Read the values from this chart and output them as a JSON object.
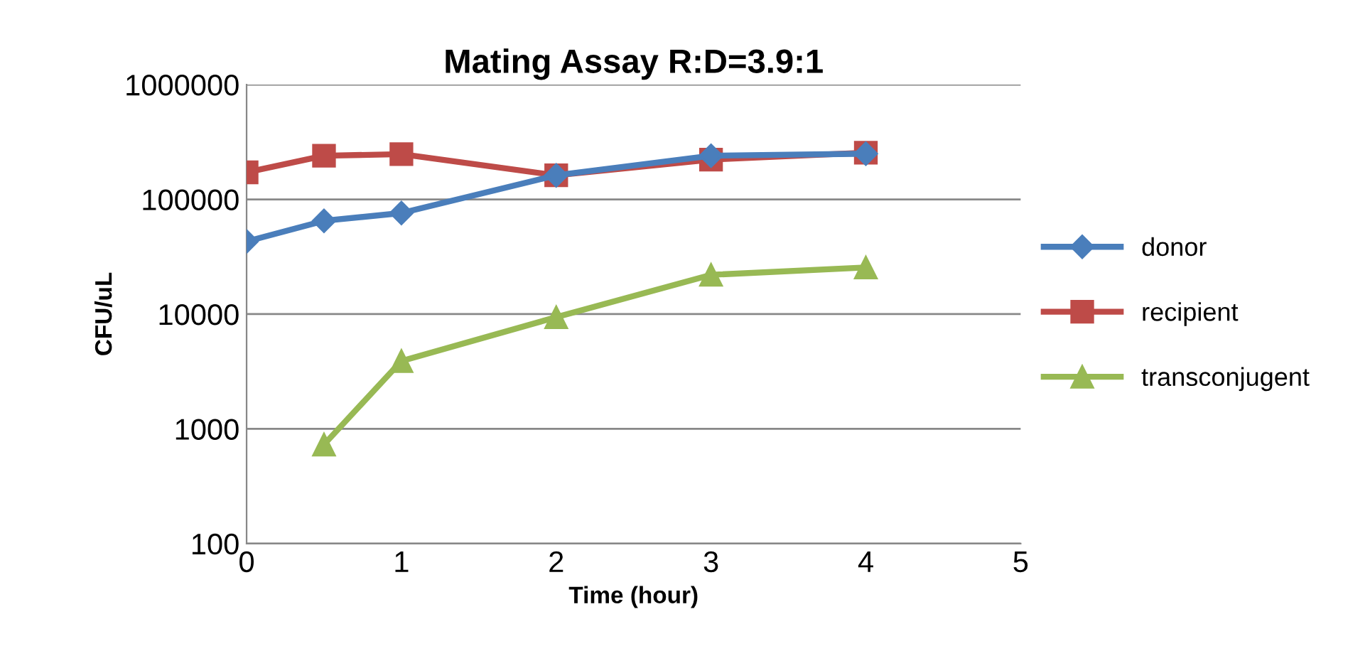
{
  "chart_data": {
    "type": "line",
    "title": "Mating Assay R:D=3.9:1",
    "xlabel": "Time (hour)",
    "ylabel": "CFU/uL",
    "x": [
      0,
      0.5,
      1,
      2,
      3,
      4
    ],
    "series": [
      {
        "name": "donor",
        "color": "#4a7ebb",
        "marker": "diamond",
        "values": [
          43000,
          65000,
          76000,
          162000,
          240000,
          250000
        ]
      },
      {
        "name": "recipient",
        "color": "#be4b48",
        "marker": "square",
        "values": [
          172000,
          240000,
          248000,
          162000,
          222000,
          255000
        ]
      },
      {
        "name": "transconjugent",
        "color": "#98b954",
        "marker": "triangle",
        "values": [
          null,
          730,
          3900,
          9400,
          22000,
          25500
        ]
      }
    ],
    "log": "y",
    "xlim": [
      0,
      5
    ],
    "xticks": [
      0,
      1,
      2,
      3,
      4,
      5
    ],
    "ylim": [
      100,
      1000000
    ],
    "yticks": [
      100,
      1000,
      10000,
      100000,
      1000000
    ],
    "grid": "y",
    "legend": "right",
    "line_style": "solid"
  }
}
